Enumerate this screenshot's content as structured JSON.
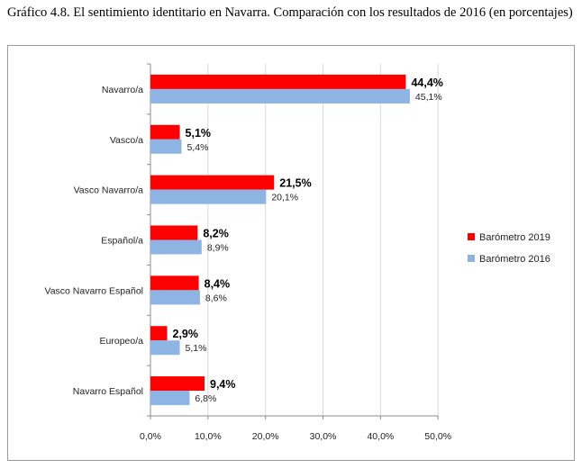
{
  "caption": "Gráfico 4.8. El sentimiento identitario en Navarra. Comparación con los resultados de 2016 (en porcentajes)",
  "chart_data": {
    "type": "bar",
    "orientation": "horizontal",
    "categories": [
      "Navarro/a",
      "Vasco/a",
      "Vasco Navarro/a",
      "Español/a",
      "Vasco Navarro Español",
      "Europeo/a",
      "Navarro Español"
    ],
    "series": [
      {
        "name": "Barómetro 2019",
        "color": "#ff0000",
        "values": [
          44.4,
          5.1,
          21.5,
          8.2,
          8.4,
          2.9,
          9.4
        ],
        "labels": [
          "44,4%",
          "5,1%",
          "21,5%",
          "8,2%",
          "8,4%",
          "2,9%",
          "9,4%"
        ]
      },
      {
        "name": "Barómetro 2016",
        "color": "#8eb4e3",
        "values": [
          45.1,
          5.4,
          20.1,
          8.9,
          8.6,
          5.1,
          6.8
        ],
        "labels": [
          "45,1%",
          "5,4%",
          "20,1%",
          "8,9%",
          "8,6%",
          "5,1%",
          "6,8%"
        ]
      }
    ],
    "xlim": [
      0,
      50
    ],
    "xticks": [
      "0,0%",
      "10,0%",
      "20,0%",
      "30,0%",
      "40,0%",
      "50,0%"
    ],
    "grid": true,
    "legend_position": "right"
  }
}
